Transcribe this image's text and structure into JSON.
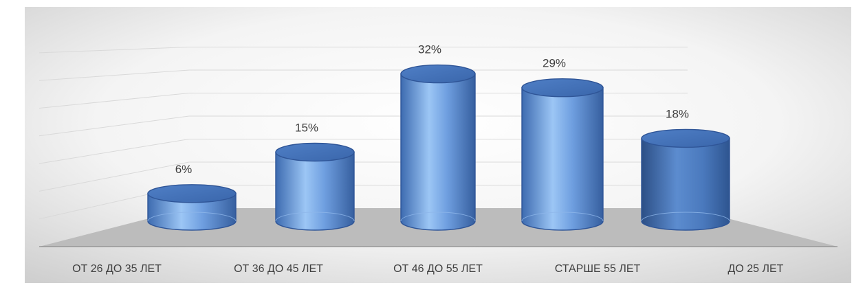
{
  "chart_data": {
    "type": "bar",
    "style": "3d-cylinder",
    "categories": [
      "ОТ 26 ДО 35 ЛЕТ",
      "ОТ 36 ДО 45 ЛЕТ",
      "ОТ 46 ДО 55 ЛЕТ",
      "СТАРШЕ 55 ЛЕТ",
      "ДО 25 ЛЕТ"
    ],
    "values": [
      6,
      15,
      32,
      29,
      18
    ],
    "value_labels": [
      "6%",
      "15%",
      "32%",
      "29%",
      "18%"
    ],
    "unit": "%",
    "ylim": [
      0,
      35
    ],
    "grid": true,
    "legend": "none",
    "colors": {
      "bar": "#5b8fd6",
      "bar_highlight": "#a9cdf7",
      "bar_edge": "#2f5597",
      "floor": "#bfbfbf",
      "gridline": "#d9d9d9",
      "text": "#404040"
    }
  }
}
